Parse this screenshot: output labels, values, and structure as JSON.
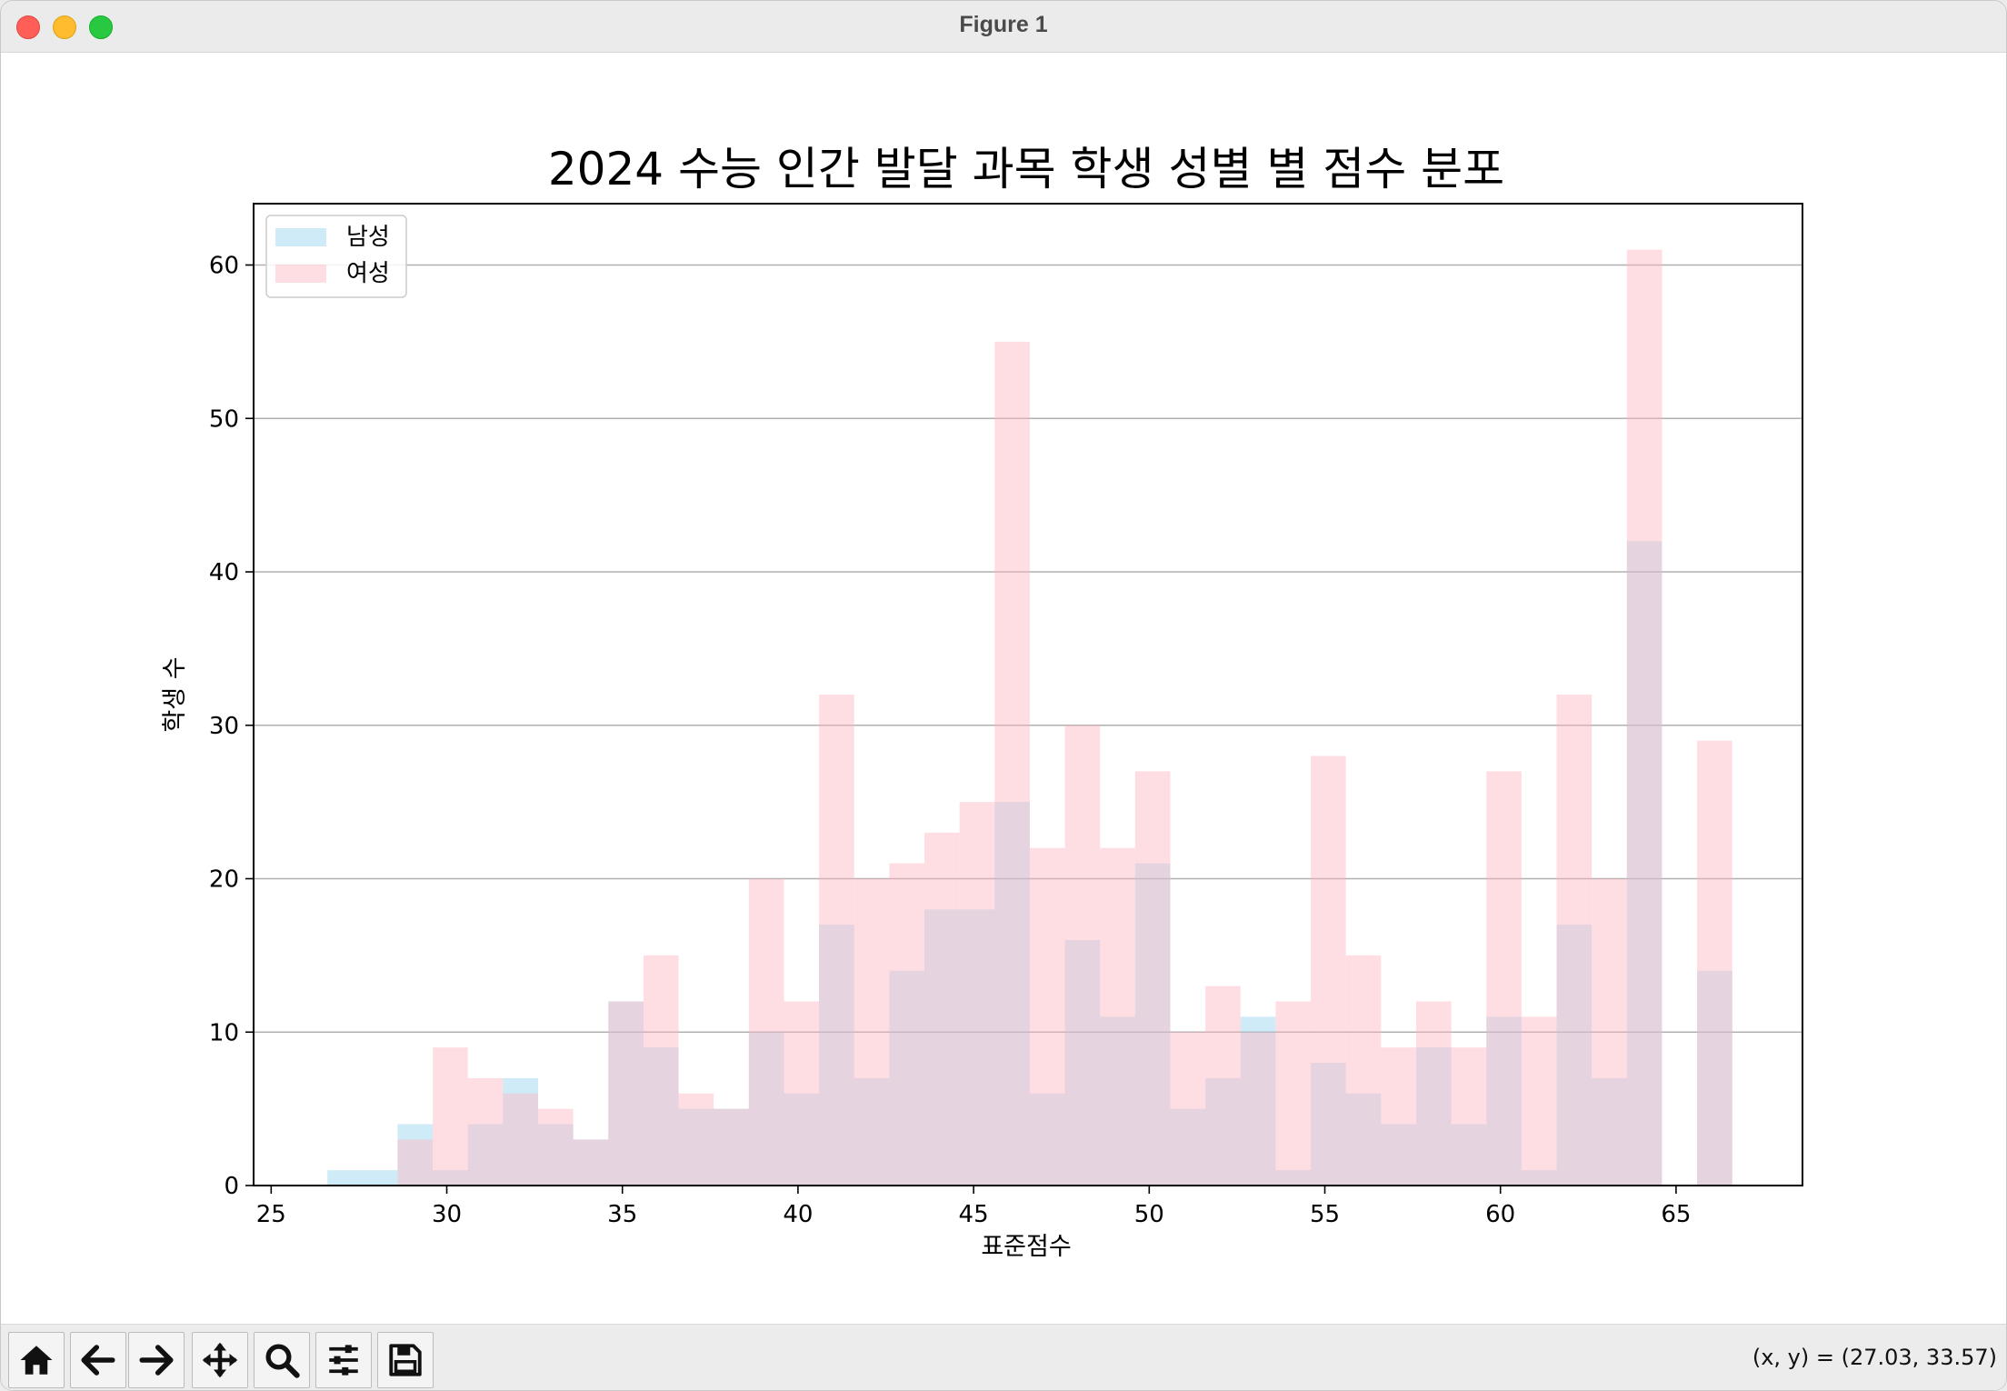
{
  "window": {
    "title": "Figure 1"
  },
  "toolbar": {
    "buttons": [
      {
        "name": "home-icon"
      },
      {
        "name": "back-arrow-icon"
      },
      {
        "name": "forward-arrow-icon"
      },
      {
        "name": "pan-move-icon"
      },
      {
        "name": "zoom-magnifier-icon"
      },
      {
        "name": "configure-subplots-icon"
      },
      {
        "name": "save-disk-icon"
      }
    ],
    "coords": "(x, y) = (27.03, 33.57)"
  },
  "chart_data": {
    "type": "bar",
    "title": "2024 수능 인간 발달 과목 학생 성별 별 점수 분포",
    "xlabel": "표준점수",
    "ylabel": "학생 수",
    "xlim": [
      24.5,
      68.6
    ],
    "ylim": [
      0,
      64
    ],
    "xticks": [
      25,
      30,
      35,
      40,
      45,
      50,
      55,
      60,
      65
    ],
    "yticks": [
      0,
      10,
      20,
      30,
      40,
      50,
      60
    ],
    "grid": "y",
    "legend_position": "top-left",
    "series": [
      {
        "name": "남성",
        "color": "#87ceeb",
        "opacity": 0.4,
        "bins": [
          [
            26.6,
            27.6,
            1
          ],
          [
            27.6,
            28.6,
            1
          ],
          [
            28.6,
            29.6,
            4
          ],
          [
            29.6,
            30.6,
            1
          ],
          [
            30.6,
            31.6,
            4
          ],
          [
            31.6,
            32.6,
            7
          ],
          [
            32.6,
            33.6,
            4
          ],
          [
            33.6,
            34.6,
            3
          ],
          [
            34.6,
            35.6,
            12
          ],
          [
            35.6,
            36.6,
            9
          ],
          [
            36.6,
            37.6,
            5
          ],
          [
            37.6,
            38.6,
            5
          ],
          [
            38.6,
            39.6,
            10
          ],
          [
            39.6,
            40.6,
            6
          ],
          [
            40.6,
            41.6,
            17
          ],
          [
            41.6,
            42.6,
            7
          ],
          [
            42.6,
            43.6,
            14
          ],
          [
            43.6,
            44.6,
            18
          ],
          [
            44.6,
            45.6,
            18
          ],
          [
            45.6,
            46.6,
            25
          ],
          [
            46.6,
            47.6,
            6
          ],
          [
            47.6,
            48.6,
            16
          ],
          [
            48.6,
            49.6,
            11
          ],
          [
            49.6,
            50.6,
            21
          ],
          [
            50.6,
            51.6,
            5
          ],
          [
            51.6,
            52.6,
            7
          ],
          [
            52.6,
            53.6,
            11
          ],
          [
            53.6,
            54.6,
            1
          ],
          [
            54.6,
            55.6,
            8
          ],
          [
            55.6,
            56.6,
            6
          ],
          [
            56.6,
            57.6,
            4
          ],
          [
            57.6,
            58.6,
            9
          ],
          [
            58.6,
            59.6,
            4
          ],
          [
            59.6,
            60.6,
            11
          ],
          [
            60.6,
            61.6,
            1
          ],
          [
            61.6,
            62.6,
            17
          ],
          [
            62.6,
            63.6,
            7
          ],
          [
            63.6,
            64.6,
            42
          ],
          [
            64.6,
            65.6,
            0
          ],
          [
            65.6,
            66.6,
            14
          ]
        ]
      },
      {
        "name": "여성",
        "color": "#ffb6c1",
        "opacity": 0.45,
        "bins": [
          [
            26.6,
            27.6,
            0
          ],
          [
            27.6,
            28.6,
            0
          ],
          [
            28.6,
            29.6,
            3
          ],
          [
            29.6,
            30.6,
            9
          ],
          [
            30.6,
            31.6,
            7
          ],
          [
            31.6,
            32.6,
            6
          ],
          [
            32.6,
            33.6,
            5
          ],
          [
            33.6,
            34.6,
            3
          ],
          [
            34.6,
            35.6,
            12
          ],
          [
            35.6,
            36.6,
            15
          ],
          [
            36.6,
            37.6,
            6
          ],
          [
            37.6,
            38.6,
            5
          ],
          [
            38.6,
            39.6,
            20
          ],
          [
            39.6,
            40.6,
            12
          ],
          [
            40.6,
            41.6,
            32
          ],
          [
            41.6,
            42.6,
            20
          ],
          [
            42.6,
            43.6,
            21
          ],
          [
            43.6,
            44.6,
            23
          ],
          [
            44.6,
            45.6,
            25
          ],
          [
            45.6,
            46.6,
            55
          ],
          [
            46.6,
            47.6,
            22
          ],
          [
            47.6,
            48.6,
            30
          ],
          [
            48.6,
            49.6,
            22
          ],
          [
            49.6,
            50.6,
            27
          ],
          [
            50.6,
            51.6,
            10
          ],
          [
            51.6,
            52.6,
            13
          ],
          [
            52.6,
            53.6,
            10
          ],
          [
            53.6,
            54.6,
            12
          ],
          [
            54.6,
            55.6,
            28
          ],
          [
            55.6,
            56.6,
            15
          ],
          [
            56.6,
            57.6,
            9
          ],
          [
            57.6,
            58.6,
            12
          ],
          [
            58.6,
            59.6,
            9
          ],
          [
            59.6,
            60.6,
            27
          ],
          [
            60.6,
            61.6,
            11
          ],
          [
            61.6,
            62.6,
            32
          ],
          [
            62.6,
            63.6,
            20
          ],
          [
            63.6,
            64.6,
            61
          ],
          [
            64.6,
            65.6,
            0
          ],
          [
            65.6,
            66.6,
            29
          ]
        ]
      }
    ]
  }
}
